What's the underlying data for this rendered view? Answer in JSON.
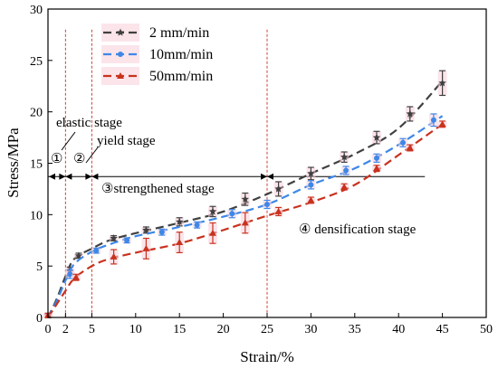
{
  "chart_data": {
    "type": "line",
    "xlabel": "Strain/%",
    "ylabel": "Stress/MPa",
    "xlim": [
      0,
      50
    ],
    "ylim": [
      0,
      30
    ],
    "xticks": [
      0,
      2,
      5,
      10,
      15,
      20,
      25,
      30,
      35,
      40,
      45,
      50
    ],
    "yticks": [
      0,
      5,
      10,
      15,
      20,
      25,
      30
    ],
    "legend_position": "top-left",
    "series": [
      {
        "name": "2 mm/min",
        "color": "#404040",
        "marker": "star",
        "curve": [
          [
            0,
            0
          ],
          [
            1,
            1.8
          ],
          [
            2,
            4.0
          ],
          [
            3,
            5.7
          ],
          [
            5,
            6.7
          ],
          [
            7,
            7.5
          ],
          [
            10,
            8.2
          ],
          [
            15,
            9.2
          ],
          [
            20,
            10.3
          ],
          [
            25,
            12.0
          ],
          [
            30,
            14.0
          ],
          [
            35,
            15.9
          ],
          [
            40,
            18.4
          ],
          [
            45,
            23.0
          ]
        ],
        "points": [
          {
            "x": 0,
            "y": 0.2,
            "err": 0.2
          },
          {
            "x": 2.5,
            "y": 4.5,
            "err": 0.4
          },
          {
            "x": 3.5,
            "y": 6.0,
            "err": 0.25
          },
          {
            "x": 7.5,
            "y": 7.7,
            "err": 0.25
          },
          {
            "x": 11.2,
            "y": 8.5,
            "err": 0.3
          },
          {
            "x": 15,
            "y": 9.3,
            "err": 0.4
          },
          {
            "x": 18.8,
            "y": 10.3,
            "err": 0.5
          },
          {
            "x": 22.5,
            "y": 11.5,
            "err": 0.6
          },
          {
            "x": 26.3,
            "y": 12.5,
            "err": 0.7
          },
          {
            "x": 30,
            "y": 14.0,
            "err": 0.6
          },
          {
            "x": 33.8,
            "y": 15.6,
            "err": 0.5
          },
          {
            "x": 37.5,
            "y": 17.5,
            "err": 0.6
          },
          {
            "x": 41.3,
            "y": 19.8,
            "err": 0.7
          },
          {
            "x": 45,
            "y": 22.8,
            "err": 1.2
          }
        ]
      },
      {
        "name": "10mm/min",
        "color": "#3d87e8",
        "marker": "circle",
        "curve": [
          [
            0,
            0
          ],
          [
            1,
            1.6
          ],
          [
            2,
            3.6
          ],
          [
            3,
            5.2
          ],
          [
            5,
            6.4
          ],
          [
            7,
            7.1
          ],
          [
            10,
            7.9
          ],
          [
            15,
            8.8
          ],
          [
            20,
            9.8
          ],
          [
            25,
            11.0
          ],
          [
            30,
            12.9
          ],
          [
            35,
            14.5
          ],
          [
            40,
            16.8
          ],
          [
            45,
            19.6
          ]
        ],
        "points": [
          {
            "x": 0,
            "y": 0.2,
            "err": 0.2
          },
          {
            "x": 2.5,
            "y": 4.2,
            "err": 0.4
          },
          {
            "x": 5.5,
            "y": 6.5,
            "err": 0.25
          },
          {
            "x": 9,
            "y": 7.5,
            "err": 0.25
          },
          {
            "x": 13,
            "y": 8.3,
            "err": 0.3
          },
          {
            "x": 17,
            "y": 9.0,
            "err": 0.3
          },
          {
            "x": 21,
            "y": 10.1,
            "err": 0.4
          },
          {
            "x": 25,
            "y": 11.0,
            "err": 0.4
          },
          {
            "x": 30,
            "y": 12.9,
            "err": 0.4
          },
          {
            "x": 34,
            "y": 14.3,
            "err": 0.4
          },
          {
            "x": 37.5,
            "y": 15.5,
            "err": 0.4
          },
          {
            "x": 40.5,
            "y": 17.0,
            "err": 0.4
          },
          {
            "x": 44,
            "y": 19.2,
            "err": 0.6
          }
        ]
      },
      {
        "name": "50mm/min",
        "color": "#c8321e",
        "marker": "triangle",
        "curve": [
          [
            0,
            0
          ],
          [
            1,
            1.3
          ],
          [
            2,
            2.6
          ],
          [
            3,
            3.8
          ],
          [
            5,
            5.0
          ],
          [
            7,
            5.7
          ],
          [
            10,
            6.3
          ],
          [
            15,
            7.2
          ],
          [
            20,
            8.5
          ],
          [
            25,
            9.9
          ],
          [
            30,
            11.2
          ],
          [
            35,
            12.9
          ],
          [
            40,
            15.8
          ],
          [
            45,
            18.8
          ]
        ],
        "points": [
          {
            "x": 0,
            "y": 0.2,
            "err": 0.2
          },
          {
            "x": 3.2,
            "y": 3.9,
            "err": 0.3
          },
          {
            "x": 7.5,
            "y": 5.9,
            "err": 0.7
          },
          {
            "x": 11.2,
            "y": 6.7,
            "err": 1.0
          },
          {
            "x": 15,
            "y": 7.3,
            "err": 1.0
          },
          {
            "x": 18.8,
            "y": 8.2,
            "err": 1.0
          },
          {
            "x": 22.5,
            "y": 9.2,
            "err": 1.0
          },
          {
            "x": 26.3,
            "y": 10.3,
            "err": 0.4
          },
          {
            "x": 30,
            "y": 11.4,
            "err": 0.3
          },
          {
            "x": 33.8,
            "y": 12.7,
            "err": 0.3
          },
          {
            "x": 37.5,
            "y": 14.5,
            "err": 0.3
          },
          {
            "x": 41.3,
            "y": 16.5,
            "err": 0.3
          },
          {
            "x": 45,
            "y": 18.8,
            "err": 0.3
          }
        ]
      }
    ],
    "stage_lines_x": [
      2,
      5,
      25
    ],
    "stage_divider": {
      "y": 13.7,
      "x_from": 0,
      "x_to": 43
    },
    "annotations": {
      "elastic": "elastic stage",
      "yield": "yield stage",
      "circle_1": "①",
      "circle_2": "②",
      "strengthened": "③strengthened stage",
      "densification": "④ densification stage"
    }
  }
}
